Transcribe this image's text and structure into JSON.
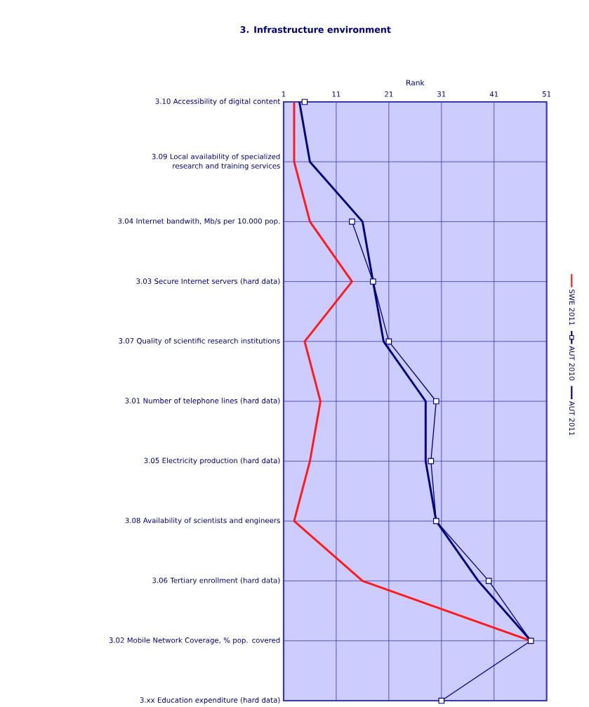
{
  "chart_data": {
    "type": "line",
    "title": "3. Infrastructure environment",
    "xlabel": "Rank",
    "orientation": "horizontal",
    "categories": [
      "3.10 Accessibility of digital content",
      "3.09 Local availability of specialized research and training services",
      "3.04 Internet bandwith, Mb/s per 10.000 pop.",
      "3.03 Secure Internet servers (hard data)",
      "3.07 Quality of scientific research institutions",
      "3.01 Number of telephone lines (hard data)",
      "3.05 Electricity production (hard data)",
      "3.08 Availability of scientists and engineers",
      "3.06 Tertiary enrollment (hard data)",
      "3.02 Mobile Network Coverage, % pop. covered",
      "3.xx Education expenditure (hard data)"
    ],
    "series": [
      {
        "name": "SWE 2011",
        "color": "#ff1a1a",
        "marker": "none",
        "values": [
          3,
          3,
          6,
          14,
          5,
          8,
          6,
          3,
          16,
          48,
          null
        ]
      },
      {
        "name": "AUT 2010",
        "color": "#000080",
        "marker": "square",
        "values": [
          5,
          null,
          14,
          18,
          21,
          30,
          29,
          30,
          40,
          48,
          31
        ]
      },
      {
        "name": "AUT 2011",
        "color": "#000080",
        "marker": "none",
        "values": [
          4,
          6,
          16,
          18,
          20,
          28,
          28,
          30,
          38,
          48,
          null
        ]
      }
    ],
    "xlim": [
      1,
      51
    ],
    "xticks": [
      1,
      11,
      21,
      31,
      41,
      51
    ],
    "grid": true,
    "legend": "right"
  }
}
